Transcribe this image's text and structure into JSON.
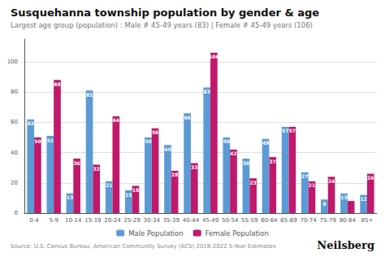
{
  "chart_data": {
    "type": "bar",
    "title": "Susquehanna township population by gender & age",
    "subtitle": "Largest age group (population) : Male # 45-49 years (83) | Female # 45-49 years (106)",
    "annotations": [
      "Source: U.S. Census Bureau, American Community Survey (ACS) 2018-2022 5-Year Estimates",
      "Neilsberg"
    ],
    "categories": [
      "0-4",
      "5-9",
      "10-14",
      "15-19",
      "20-24",
      "25-29",
      "30-34",
      "35-39",
      "40-44",
      "45-49",
      "50-54",
      "55-59",
      "60-64",
      "65-69",
      "70-74",
      "75-79",
      "80-84",
      "85+"
    ],
    "series": [
      {
        "name": "Male Population",
        "color": "#5B9BD5",
        "values": [
          62,
          51,
          13,
          81,
          21,
          15,
          50,
          45,
          66,
          83,
          50,
          36,
          49,
          57,
          27,
          9,
          13,
          12
        ]
      },
      {
        "name": "Female Population",
        "color": "#C0196B",
        "values": [
          50,
          88,
          36,
          32,
          64,
          18,
          56,
          28,
          33,
          106,
          42,
          23,
          37,
          57,
          21,
          24,
          8,
          26
        ],
        "value_labels": [
          "50",
          "88",
          "36",
          "32",
          "64",
          "18",
          "56",
          "28",
          "33",
          "106",
          "42",
          "23",
          "37",
          "57",
          "21",
          "24",
          null,
          "26"
        ]
      }
    ],
    "ylim": [
      0,
      115
    ],
    "yticks": [
      0,
      20,
      40,
      60,
      80,
      100
    ],
    "grid": true,
    "legend": "bottom",
    "data_labels": true
  }
}
